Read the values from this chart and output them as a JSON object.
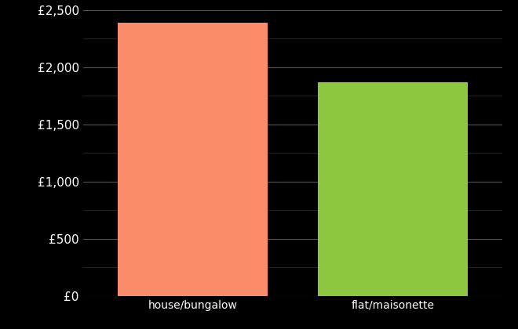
{
  "categories": [
    "house/bungalow",
    "flat/maisonette"
  ],
  "values": [
    2390,
    1870
  ],
  "bar_colors": [
    "#FA8C6A",
    "#8DC63F"
  ],
  "background_color": "#000000",
  "text_color": "#ffffff",
  "ylim": [
    0,
    2500
  ],
  "yticks_major": [
    0,
    500,
    1000,
    1500,
    2000,
    2500
  ],
  "yticks_minor": [
    250,
    750,
    1250,
    1750,
    2250
  ],
  "ytick_labels": [
    "£0",
    "£500",
    "£1,000",
    "£1,500",
    "£2,000",
    "£2,500"
  ],
  "grid_color_major": "#555555",
  "grid_color_minor": "#333333",
  "bar_width": 0.75,
  "xlabel_fontsize": 10,
  "ytick_fontsize": 11
}
